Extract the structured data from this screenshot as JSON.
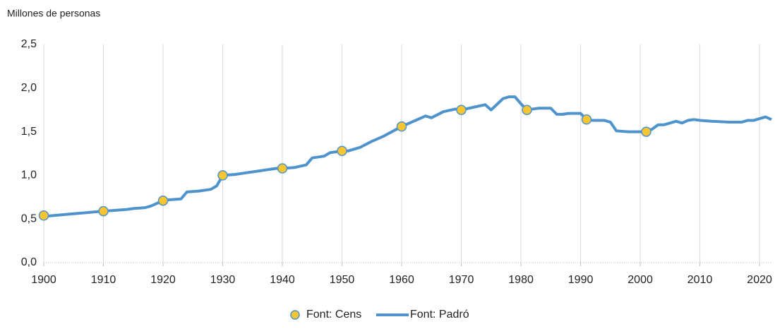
{
  "chart_data": {
    "type": "line",
    "y_label": "Millones de personas",
    "xlim": [
      1900,
      2022
    ],
    "xticks": [
      1900,
      1910,
      1920,
      1930,
      1940,
      1950,
      1960,
      1970,
      1980,
      1990,
      2000,
      2010,
      2020
    ],
    "ylim": [
      0,
      2.5
    ],
    "yticks": [
      {
        "value": 0,
        "label": "0,0"
      },
      {
        "value": 0.5,
        "label": "0,5"
      },
      {
        "value": 1,
        "label": "1,0"
      },
      {
        "value": 1.5,
        "label": "1,5"
      },
      {
        "value": 2,
        "label": "2,0"
      },
      {
        "value": 2.5,
        "label": "2,5"
      }
    ],
    "grid": true,
    "legend": "bottom",
    "series": [
      {
        "name": "Font: Cens",
        "type": "scatter",
        "color": "#f7c531",
        "edge_color": "#4f93cc",
        "x": [
          1900,
          1910,
          1920,
          1930,
          1940,
          1950,
          1960,
          1970,
          1981,
          1991,
          2001
        ],
        "values": [
          0.54,
          0.59,
          0.71,
          1.0,
          1.08,
          1.28,
          1.56,
          1.75,
          1.75,
          1.64,
          1.5
        ]
      },
      {
        "name": "Font: Padró",
        "type": "line",
        "color": "#4f93cc",
        "x": [
          1900,
          1905,
          1910,
          1912,
          1914,
          1915,
          1917,
          1918,
          1920,
          1921,
          1923,
          1924,
          1926,
          1928,
          1929,
          1930,
          1932,
          1934,
          1936,
          1938,
          1939,
          1940,
          1942,
          1944,
          1945,
          1947,
          1948,
          1950,
          1951,
          1953,
          1955,
          1957,
          1960,
          1962,
          1964,
          1965,
          1967,
          1969,
          1970,
          1972,
          1974,
          1975,
          1977,
          1978,
          1979,
          1980,
          1981,
          1983,
          1985,
          1986,
          1987,
          1988,
          1990,
          1991,
          1992,
          1994,
          1995,
          1996,
          1998,
          1999,
          2001,
          2002,
          2003,
          2004,
          2006,
          2007,
          2008,
          2009,
          2010,
          2012,
          2015,
          2017,
          2018,
          2019,
          2021,
          2022
        ],
        "values": [
          0.53,
          0.56,
          0.59,
          0.6,
          0.61,
          0.62,
          0.63,
          0.65,
          0.71,
          0.72,
          0.73,
          0.81,
          0.82,
          0.84,
          0.88,
          1.0,
          1.01,
          1.03,
          1.05,
          1.07,
          1.08,
          1.08,
          1.09,
          1.12,
          1.2,
          1.22,
          1.26,
          1.28,
          1.28,
          1.32,
          1.39,
          1.45,
          1.56,
          1.62,
          1.68,
          1.66,
          1.73,
          1.76,
          1.75,
          1.78,
          1.81,
          1.75,
          1.88,
          1.9,
          1.9,
          1.82,
          1.75,
          1.77,
          1.77,
          1.7,
          1.7,
          1.71,
          1.71,
          1.64,
          1.63,
          1.63,
          1.61,
          1.51,
          1.5,
          1.5,
          1.5,
          1.53,
          1.58,
          1.58,
          1.62,
          1.6,
          1.63,
          1.64,
          1.63,
          1.62,
          1.61,
          1.61,
          1.63,
          1.63,
          1.67,
          1.64
        ]
      }
    ]
  }
}
